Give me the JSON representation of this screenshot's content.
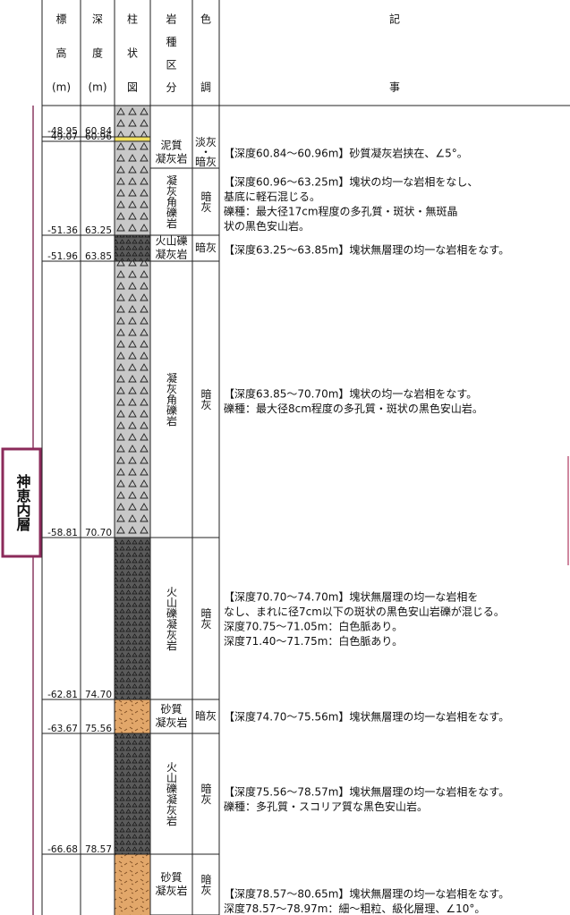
{
  "header": {
    "columns": [
      [
        "標",
        "高",
        "(m)"
      ],
      [
        "深",
        "度",
        "(m)"
      ],
      [
        "柱",
        "状",
        "図"
      ],
      [
        "岩",
        "種",
        "区",
        "分"
      ],
      [
        "色",
        "調"
      ],
      [
        "記",
        "事"
      ]
    ]
  },
  "formation": "神恵内層",
  "boundaries": [
    {
      "elevation": "-48.95",
      "depth": "60.84"
    },
    {
      "elevation": "-49.07",
      "depth": "60.96"
    },
    {
      "elevation": "-51.36",
      "depth": "63.25"
    },
    {
      "elevation": "-51.96",
      "depth": "63.85"
    },
    {
      "elevation": "-58.81",
      "depth": "70.70"
    },
    {
      "elevation": "-62.81",
      "depth": "74.70"
    },
    {
      "elevation": "-63.67",
      "depth": "75.56"
    },
    {
      "elevation": "-66.68",
      "depth": "78.57"
    }
  ],
  "layers": [
    {
      "rock": [
        "泥質",
        "凝灰岩"
      ],
      "color": [
        "淡灰",
        "・",
        "暗灰"
      ],
      "description": [
        "【深度60.84～60.96m】砂質凝灰岩挟在、∠5°。"
      ]
    },
    {
      "rock": [
        "凝灰角礫岩"
      ],
      "color": [
        "暗灰"
      ],
      "description": [
        "【深度60.96～63.25m】塊状の均一な岩相をなし、",
        "基底に軽石混じる。",
        "礫種：最大径17cm程度の多孔質・斑状・無斑晶",
        "状の黒色安山岩。"
      ]
    },
    {
      "rock": [
        "火山礫",
        "凝灰岩"
      ],
      "color": [
        "暗灰"
      ],
      "description": [
        "【深度63.25～63.85m】塊状無層理の均一な岩相をなす。"
      ]
    },
    {
      "rock": [
        "凝灰角礫岩"
      ],
      "color": [
        "暗灰"
      ],
      "description": [
        "【深度63.85～70.70m】塊状の均一な岩相をなす。",
        "礫種：最大径8cm程度の多孔質・斑状の黒色安山岩。"
      ]
    },
    {
      "rock": [
        "火山礫凝灰岩"
      ],
      "color": [
        "暗灰"
      ],
      "description": [
        "【深度70.70～74.70m】塊状無層理の均一な岩相を",
        "なし、まれに径7cm以下の斑状の黒色安山岩礫が混じる。",
        "深度70.75～71.05m：白色脈あり。",
        "深度71.40～71.75m：白色脈あり。"
      ]
    },
    {
      "rock": [
        "砂質",
        "凝灰岩"
      ],
      "color": [
        "暗灰"
      ],
      "description": [
        "【深度74.70～75.56m】塊状無層理の均一な岩相をなす。"
      ]
    },
    {
      "rock": [
        "火山礫凝灰岩"
      ],
      "color": [
        "暗灰"
      ],
      "description": [
        "【深度75.56～78.57m】塊状無層理の均一な岩相をなす。",
        "礫種：多孔質・スコリア質な黒色安山岩。"
      ]
    },
    {
      "rock": [
        "砂質",
        "凝灰岩"
      ],
      "color": [
        "暗灰"
      ],
      "description": [
        "【深度78.57～80.65m】塊状無層理の均一な岩相をなす。",
        "深度78.57～78.97m：細～粗粒、級化層理、∠10°。"
      ]
    }
  ]
}
